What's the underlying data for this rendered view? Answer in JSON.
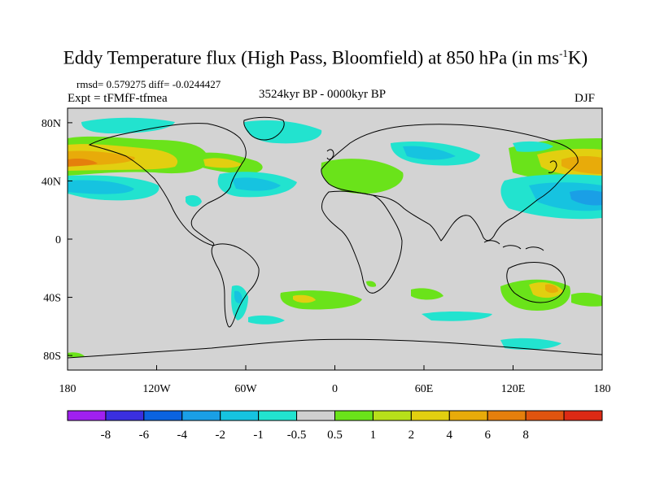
{
  "header": {
    "title_prefix": "Eddy Temperature flux (High Pass, Bloomfield) at 850 hPa (in ms",
    "title_sup": "-1",
    "title_suffix": "K)",
    "stats": "rmsd= 0.579275 diff= -0.0244427",
    "expt": "Expt = tFMfF-tfmea",
    "period": "3524kyr BP - 0000kyr BP",
    "season": "DJF"
  },
  "map": {
    "projection": "cylindrical equidistant",
    "background_color": "#d3d3d3",
    "coastline_color": "#000000",
    "x_ticks": [
      "180",
      "120W",
      "60W",
      "0",
      "60E",
      "120E",
      "180"
    ],
    "y_ticks": [
      "80N",
      "40N",
      "0",
      "40S",
      "80S"
    ]
  },
  "colorbar": {
    "labels": [
      "-8",
      "-6",
      "-4",
      "-2",
      "-1",
      "-0.5",
      "0.5",
      "1",
      "2",
      "4",
      "6",
      "8"
    ],
    "colors": [
      "#a020f0",
      "#3a2fe0",
      "#0b63e0",
      "#1a9fe6",
      "#16c3e0",
      "#22e3cf",
      "#cfcfcf",
      "#6ae31a",
      "#b7e01a",
      "#e2cf10",
      "#e8ab0a",
      "#e57f0c",
      "#e0540f",
      "#dc2a14"
    ]
  }
}
